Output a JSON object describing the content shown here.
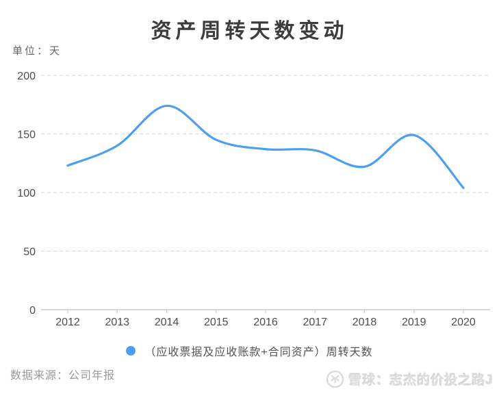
{
  "page": {
    "unit_label": "单位：天",
    "source": "数据来源：公司年报",
    "watermark": {
      "logo": "xueqiu-logo",
      "text": "雪球：志杰的价投之路J"
    }
  },
  "legend": {
    "marker_color": "#4C9FF0",
    "label": "（应收票据及应收账款+合同资产）周转天数"
  },
  "chart_data": {
    "type": "line",
    "smooth": true,
    "title": "资产周转天数变动",
    "xlabel": "",
    "ylabel": "单位：天",
    "categories": [
      "2012",
      "2013",
      "2014",
      "2015",
      "2016",
      "2017",
      "2018",
      "2019",
      "2020"
    ],
    "series": [
      {
        "name": "（应收票据及应收账款+合同资产）周转天数",
        "color": "#4C9FF0",
        "values": [
          123,
          140,
          174,
          145,
          137,
          136,
          122,
          149,
          104
        ]
      }
    ],
    "ylim": [
      0,
      200
    ],
    "yticks": [
      0,
      50,
      100,
      150,
      200
    ],
    "grid": "horizontal-dashed",
    "legend_position": "bottom"
  },
  "colors": {
    "title": "#3C3C3C",
    "axis_text": "#4D4D4D",
    "grid_line": "#DCDCDC",
    "axis_line": "#CCCCCC",
    "line": "#4C9FF0",
    "source_text": "#999999",
    "watermark": "#DCDCDC"
  }
}
